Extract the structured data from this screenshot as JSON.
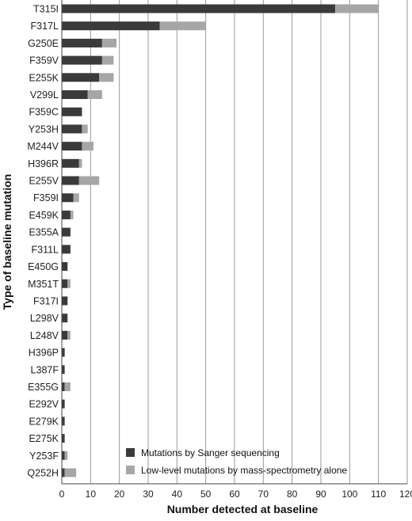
{
  "chart_data": {
    "type": "bar",
    "orientation": "horizontal",
    "stacked": true,
    "title": "",
    "xlabel": "Number detected at baseline",
    "ylabel": "Type of baseline mutation",
    "xlim": [
      0,
      120
    ],
    "xticks": [
      0,
      10,
      20,
      30,
      40,
      50,
      60,
      70,
      80,
      90,
      100,
      110,
      120
    ],
    "grid": "vertical",
    "legend_position": "bottom-right",
    "categories": [
      "T315I",
      "F317L",
      "G250E",
      "F359V",
      "E255K",
      "V299L",
      "F359C",
      "Y253H",
      "M244V",
      "H396R",
      "E255V",
      "F359I",
      "E459K",
      "E355A",
      "F311L",
      "E450G",
      "M351T",
      "F317I",
      "L298V",
      "L248V",
      "H396P",
      "L387F",
      "E355G",
      "E292V",
      "E279K",
      "E275K",
      "Y253F",
      "Q252H"
    ],
    "series": [
      {
        "name": "Mutations by Sanger sequencing",
        "color": "#3a3a3a",
        "values": [
          95,
          34,
          14,
          14,
          13,
          9,
          7,
          7,
          7,
          6,
          6,
          4,
          3,
          3,
          3,
          2,
          2,
          2,
          2,
          2,
          1,
          1,
          1,
          1,
          1,
          1,
          1,
          1
        ]
      },
      {
        "name": "Low-level mutations by mass-spectrometry alone",
        "color": "#a6a6a6",
        "values": [
          15,
          16,
          5,
          4,
          5,
          5,
          0,
          2,
          4,
          1,
          7,
          2,
          1,
          0,
          0,
          0,
          1,
          0,
          0,
          1,
          0,
          0,
          2,
          0,
          0,
          0,
          1,
          4
        ]
      }
    ]
  }
}
